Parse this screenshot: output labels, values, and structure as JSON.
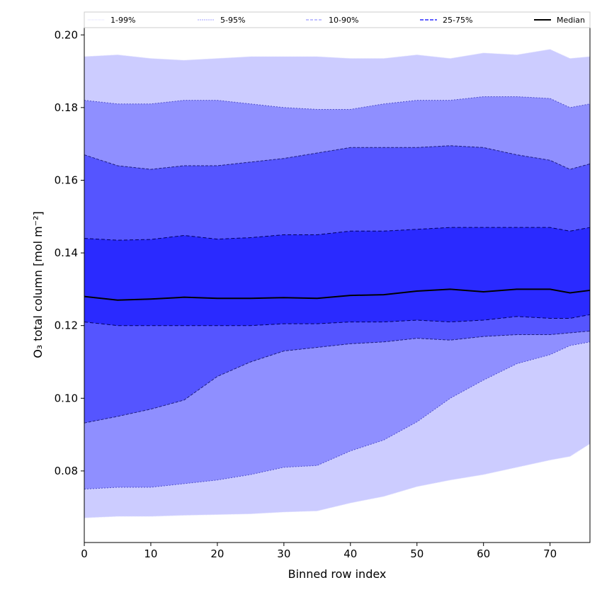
{
  "chart_data": {
    "type": "area",
    "title": "",
    "xlabel": "Binned row index",
    "ylabel": "O₃ total column [mol m⁻²]",
    "xlim": [
      0,
      76
    ],
    "ylim": [
      0.0603,
      0.202
    ],
    "xticks": [
      0,
      10,
      20,
      30,
      40,
      50,
      60,
      70
    ],
    "xtick_labels": [
      "0",
      "10",
      "20",
      "30",
      "40",
      "50",
      "60",
      "70"
    ],
    "yticks": [
      0.08,
      0.1,
      0.12,
      0.14,
      0.16,
      0.18,
      0.2
    ],
    "ytick_labels": [
      "0.08",
      "0.10",
      "0.12",
      "0.14",
      "0.16",
      "0.18",
      "0.20"
    ],
    "legend_placement": "top (above plot)",
    "legend": [
      "1-99%",
      "5-95%",
      "10-90%",
      "25-75%",
      "Median"
    ],
    "x": [
      0,
      5,
      10,
      15,
      20,
      25,
      30,
      35,
      40,
      45,
      50,
      55,
      60,
      65,
      70,
      73,
      76
    ],
    "bands": [
      {
        "name": "1-99%",
        "color": "#ccccff",
        "line_color": "#d8d8ff",
        "lower": [
          0.0671,
          0.0675,
          0.0675,
          0.0678,
          0.068,
          0.0682,
          0.0687,
          0.069,
          0.0712,
          0.073,
          0.0757,
          0.0775,
          0.079,
          0.081,
          0.083,
          0.084,
          0.0875
        ],
        "upper": [
          0.194,
          0.1945,
          0.1935,
          0.193,
          0.1935,
          0.194,
          0.194,
          0.194,
          0.1935,
          0.1935,
          0.1945,
          0.1935,
          0.195,
          0.1945,
          0.196,
          0.1935,
          0.194
        ]
      },
      {
        "name": "5-95%",
        "color": "#8f8fff",
        "line_color": "#5050cc",
        "lower": [
          0.075,
          0.0755,
          0.0755,
          0.0765,
          0.0775,
          0.079,
          0.081,
          0.0815,
          0.0855,
          0.0885,
          0.0935,
          0.1,
          0.105,
          0.1095,
          0.112,
          0.1145,
          0.1155
        ],
        "upper": [
          0.182,
          0.181,
          0.181,
          0.182,
          0.182,
          0.181,
          0.18,
          0.1795,
          0.1795,
          0.181,
          0.182,
          0.182,
          0.183,
          0.183,
          0.1825,
          0.18,
          0.181
        ]
      },
      {
        "name": "10-90%",
        "color": "#5555ff",
        "line_color": "#202080",
        "lower": [
          0.0932,
          0.095,
          0.097,
          0.0995,
          0.106,
          0.11,
          0.113,
          0.114,
          0.115,
          0.1155,
          0.1165,
          0.116,
          0.117,
          0.1175,
          0.1175,
          0.118,
          0.1185
        ],
        "upper": [
          0.167,
          0.164,
          0.163,
          0.164,
          0.164,
          0.165,
          0.166,
          0.1675,
          0.169,
          0.169,
          0.169,
          0.1695,
          0.169,
          0.167,
          0.1655,
          0.163,
          0.1645
        ]
      },
      {
        "name": "25-75%",
        "color": "#2a2aff",
        "line_color": "#000060",
        "lower": [
          0.121,
          0.12,
          0.12,
          0.12,
          0.12,
          0.12,
          0.1205,
          0.1205,
          0.121,
          0.121,
          0.1215,
          0.121,
          0.1215,
          0.1225,
          0.122,
          0.122,
          0.123
        ],
        "upper": [
          0.144,
          0.1435,
          0.1437,
          0.1448,
          0.1438,
          0.1442,
          0.145,
          0.145,
          0.146,
          0.146,
          0.1465,
          0.147,
          0.147,
          0.147,
          0.147,
          0.146,
          0.147
        ]
      }
    ],
    "median": {
      "name": "Median",
      "color": "#000000",
      "values": [
        0.128,
        0.127,
        0.1273,
        0.1278,
        0.1275,
        0.1275,
        0.1277,
        0.1275,
        0.1283,
        0.1285,
        0.1295,
        0.13,
        0.1293,
        0.13,
        0.13,
        0.129,
        0.1297
      ]
    }
  }
}
